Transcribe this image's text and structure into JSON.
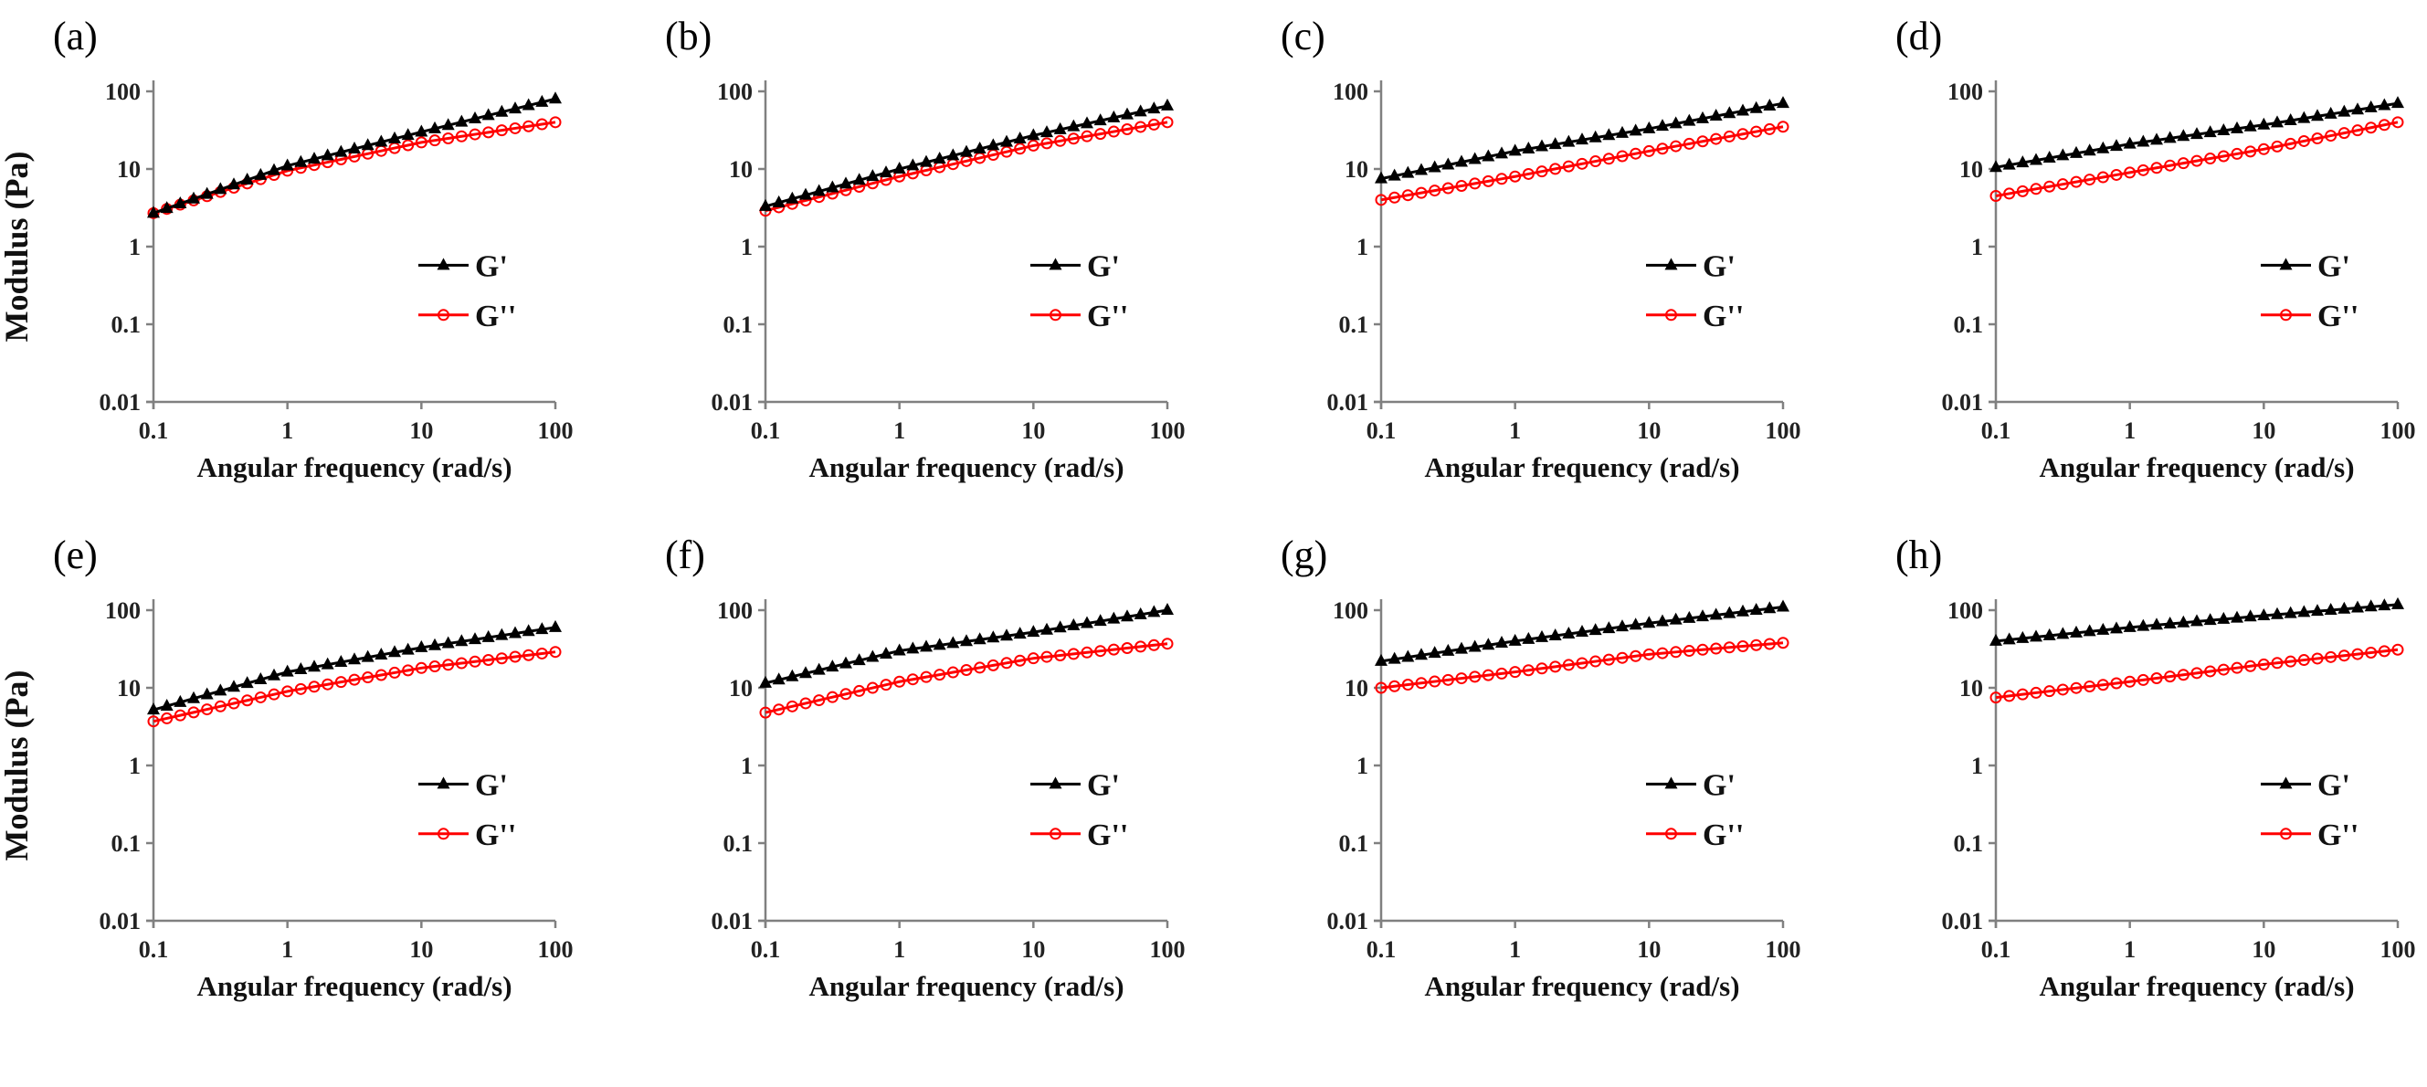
{
  "figure": {
    "ylabel": "Modulus (Pa)",
    "xlabel": "Angular frequency (rad/s)"
  },
  "colors": {
    "g_prime": "#000000",
    "g_double_prime": "#ff0000",
    "axis": "#808080"
  },
  "chart_data": [
    {
      "panel": "(a)",
      "type": "line",
      "xscale": "log",
      "yscale": "log",
      "xlabel": "Angular frequency (rad/s)",
      "ylabel": "Modulus (Pa)",
      "xlim": [
        0.1,
        100
      ],
      "ylim": [
        0.01,
        100
      ],
      "xticks": [
        "0.1",
        "1",
        "10",
        "100"
      ],
      "yticks": [
        "0.01",
        "0.1",
        "1",
        "10",
        "100"
      ],
      "legend": [
        "G'",
        "G''"
      ],
      "legend_position": "right",
      "x": [
        0.1,
        1,
        10,
        100
      ],
      "series": [
        {
          "name": "G'",
          "marker": "triangle",
          "values": [
            2.7,
            11,
            30,
            80
          ]
        },
        {
          "name": "G''",
          "marker": "circle-open",
          "values": [
            2.7,
            9.5,
            22,
            40
          ]
        }
      ]
    },
    {
      "panel": "(b)",
      "type": "line",
      "xscale": "log",
      "yscale": "log",
      "xlabel": "Angular frequency (rad/s)",
      "ylabel": "",
      "xlim": [
        0.1,
        100
      ],
      "ylim": [
        0.01,
        100
      ],
      "xticks": [
        "0.1",
        "1",
        "10",
        "100"
      ],
      "yticks": [
        "0.01",
        "0.1",
        "1",
        "10",
        "100"
      ],
      "legend": [
        "G'",
        "G''"
      ],
      "legend_position": "right",
      "x": [
        0.1,
        1,
        10,
        100
      ],
      "series": [
        {
          "name": "G'",
          "marker": "triangle",
          "values": [
            3.3,
            10,
            27,
            65
          ]
        },
        {
          "name": "G''",
          "marker": "circle-open",
          "values": [
            2.9,
            8,
            20,
            40
          ]
        }
      ]
    },
    {
      "panel": "(c)",
      "type": "line",
      "xscale": "log",
      "yscale": "log",
      "xlabel": "Angular frequency (rad/s)",
      "ylabel": "",
      "xlim": [
        0.1,
        100
      ],
      "ylim": [
        0.01,
        100
      ],
      "xticks": [
        "0.1",
        "1",
        "10",
        "100"
      ],
      "yticks": [
        "0.01",
        "0.1",
        "1",
        "10",
        "100"
      ],
      "legend": [
        "G'",
        "G''"
      ],
      "legend_position": "right",
      "x": [
        0.1,
        1,
        10,
        100
      ],
      "series": [
        {
          "name": "G'",
          "marker": "triangle",
          "values": [
            7.5,
            17,
            33,
            70
          ]
        },
        {
          "name": "G''",
          "marker": "circle-open",
          "values": [
            4,
            8,
            17,
            35
          ]
        }
      ]
    },
    {
      "panel": "(d)",
      "type": "line",
      "xscale": "log",
      "yscale": "log",
      "xlabel": "Angular frequency (rad/s)",
      "ylabel": "",
      "xlim": [
        0.1,
        100
      ],
      "ylim": [
        0.01,
        100
      ],
      "xticks": [
        "0.1",
        "1",
        "10",
        "100"
      ],
      "yticks": [
        "0.01",
        "0.1",
        "1",
        "10",
        "100"
      ],
      "legend": [
        "G'",
        "G''"
      ],
      "legend_position": "right",
      "x": [
        0.1,
        1,
        10,
        100
      ],
      "series": [
        {
          "name": "G'",
          "marker": "triangle",
          "values": [
            10.5,
            21,
            37,
            70
          ]
        },
        {
          "name": "G''",
          "marker": "circle-open",
          "values": [
            4.5,
            9,
            18,
            40
          ]
        }
      ]
    },
    {
      "panel": "(e)",
      "type": "line",
      "xscale": "log",
      "yscale": "log",
      "xlabel": "Angular frequency (rad/s)",
      "ylabel": "Modulus (Pa)",
      "xlim": [
        0.1,
        100
      ],
      "ylim": [
        0.01,
        100
      ],
      "xticks": [
        "0.1",
        "1",
        "10",
        "100"
      ],
      "yticks": [
        "0.01",
        "0.1",
        "1",
        "10",
        "100"
      ],
      "legend": [
        "G'",
        "G''"
      ],
      "legend_position": "right",
      "x": [
        0.1,
        1,
        10,
        100
      ],
      "series": [
        {
          "name": "G'",
          "marker": "triangle",
          "values": [
            5.2,
            16,
            33,
            60
          ]
        },
        {
          "name": "G''",
          "marker": "circle-open",
          "values": [
            3.7,
            9,
            18,
            29
          ]
        }
      ]
    },
    {
      "panel": "(f)",
      "type": "line",
      "xscale": "log",
      "yscale": "log",
      "xlabel": "Angular frequency (rad/s)",
      "ylabel": "",
      "xlim": [
        0.1,
        100
      ],
      "ylim": [
        0.01,
        100
      ],
      "xticks": [
        "0.1",
        "1",
        "10",
        "100"
      ],
      "yticks": [
        "0.01",
        "0.1",
        "1",
        "10",
        "100"
      ],
      "legend": [
        "G'",
        "G''"
      ],
      "legend_position": "right",
      "x": [
        0.1,
        1,
        10,
        100
      ],
      "series": [
        {
          "name": "G'",
          "marker": "triangle",
          "values": [
            11.5,
            30,
            52,
            100
          ]
        },
        {
          "name": "G''",
          "marker": "circle-open",
          "values": [
            4.8,
            12,
            24,
            37
          ]
        }
      ]
    },
    {
      "panel": "(g)",
      "type": "line",
      "xscale": "log",
      "yscale": "log",
      "xlabel": "Angular frequency (rad/s)",
      "ylabel": "",
      "xlim": [
        0.1,
        100
      ],
      "ylim": [
        0.01,
        100
      ],
      "xticks": [
        "0.1",
        "1",
        "10",
        "100"
      ],
      "yticks": [
        "0.01",
        "0.1",
        "1",
        "10",
        "100"
      ],
      "legend": [
        "G'",
        "G''"
      ],
      "legend_position": "right",
      "x": [
        0.1,
        1,
        10,
        100
      ],
      "series": [
        {
          "name": "G'",
          "marker": "triangle",
          "values": [
            22,
            40,
            68,
            110
          ]
        },
        {
          "name": "G''",
          "marker": "circle-open",
          "values": [
            10,
            16,
            27,
            38
          ]
        }
      ]
    },
    {
      "panel": "(h)",
      "type": "line",
      "xscale": "log",
      "yscale": "log",
      "xlabel": "Angular frequency (rad/s)",
      "ylabel": "",
      "xlim": [
        0.1,
        100
      ],
      "ylim": [
        0.01,
        100
      ],
      "xticks": [
        "0.1",
        "1",
        "10",
        "100"
      ],
      "yticks": [
        "0.01",
        "0.1",
        "1",
        "10",
        "100"
      ],
      "legend": [
        "G'",
        "G''"
      ],
      "legend_position": "right",
      "x": [
        0.1,
        1,
        10,
        100
      ],
      "series": [
        {
          "name": "G'",
          "marker": "triangle",
          "values": [
            40,
            60,
            85,
            118
          ]
        },
        {
          "name": "G''",
          "marker": "circle-open",
          "values": [
            7.5,
            12,
            20,
            31
          ]
        }
      ]
    }
  ]
}
